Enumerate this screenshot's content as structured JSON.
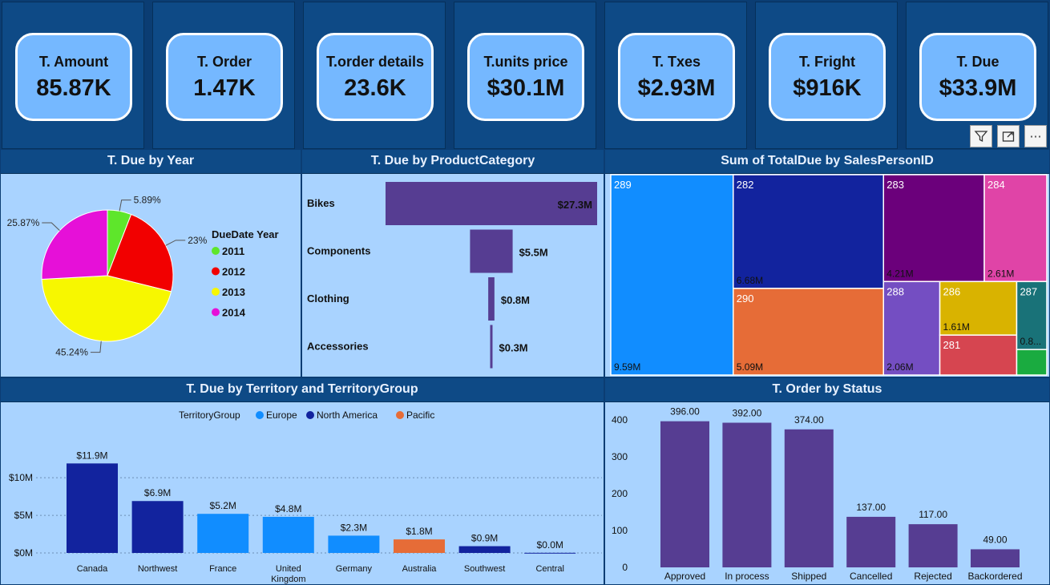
{
  "kpis": [
    {
      "label": "T. Amount",
      "value": "85.87K"
    },
    {
      "label": "T. Order",
      "value": "1.47K"
    },
    {
      "label": "T.order details",
      "value": "23.6K"
    },
    {
      "label": "T.units price",
      "value": "$30.1M"
    },
    {
      "label": "T. Txes",
      "value": "$2.93M"
    },
    {
      "label": "T. Fright",
      "value": "$916K"
    },
    {
      "label": "T. Due",
      "value": "$33.9M"
    }
  ],
  "visual_toolbar": {
    "filter_icon": "filter-icon",
    "focus_icon": "focus-mode-icon",
    "more_icon": "more-options-icon",
    "more_glyph": "⋯"
  },
  "panel_titles": {
    "pie": "T. Due by Year",
    "category": "T. Due by ProductCategory",
    "treemap": "Sum of TotalDue by SalesPersonID",
    "territory": "T. Due by Territory and TerritoryGroup",
    "status": "T. Order by Status"
  },
  "chart_data": [
    {
      "type": "pie",
      "title": "T. Due by Year",
      "legend_title": "DueDate Year",
      "legend_position": "right",
      "categories": [
        "2011",
        "2012",
        "2013",
        "2014"
      ],
      "values": [
        5.89,
        23,
        45.24,
        25.87
      ],
      "data_labels": [
        "5.89%",
        "23%",
        "45.24%",
        "25.87%"
      ],
      "colors": [
        "#5ee62b",
        "#f20000",
        "#f7f700",
        "#e610d8"
      ]
    },
    {
      "type": "bar",
      "orientation": "horizontal-funnel",
      "title": "T. Due by ProductCategory",
      "categories": [
        "Bikes",
        "Components",
        "Clothing",
        "Accessories"
      ],
      "values": [
        27.3,
        5.5,
        0.8,
        0.3
      ],
      "data_labels": [
        "$27.3M",
        "$5.5M",
        "$0.8M",
        "$0.3M"
      ],
      "color": "#563d92"
    },
    {
      "type": "treemap",
      "title": "Sum of TotalDue by SalesPersonID",
      "items": [
        {
          "id": "289",
          "value": 9.59,
          "label": "9.59M",
          "color": "#118dff"
        },
        {
          "id": "282",
          "value": 6.68,
          "label": "6.68M",
          "color": "#12239e"
        },
        {
          "id": "290",
          "value": 5.09,
          "label": "5.09M",
          "color": "#e66c37"
        },
        {
          "id": "283",
          "value": 4.21,
          "label": "4.21M",
          "color": "#6b007b"
        },
        {
          "id": "284",
          "value": 2.61,
          "label": "2.61M",
          "color": "#e044a7"
        },
        {
          "id": "288",
          "value": 2.06,
          "label": "2.06M",
          "color": "#744ec2"
        },
        {
          "id": "286",
          "value": 1.61,
          "label": "1.61M",
          "color": "#d9b300"
        },
        {
          "id": "281",
          "value": 1.2,
          "label": "",
          "color": "#d64550"
        },
        {
          "id": "287",
          "value": 0.8,
          "label": "0.8...",
          "color": "#197278"
        },
        {
          "id": "",
          "value": 0.3,
          "label": "",
          "color": "#1aab40"
        }
      ]
    },
    {
      "type": "bar",
      "title": "T. Due by Territory and TerritoryGroup",
      "legend_title": "TerritoryGroup",
      "legend_position": "top",
      "legend": [
        {
          "name": "Europe",
          "color": "#118dff"
        },
        {
          "name": "North America",
          "color": "#12239e"
        },
        {
          "name": "Pacific",
          "color": "#e66c37"
        }
      ],
      "categories": [
        "Canada",
        "Northwest",
        "France",
        "United Kingdom",
        "Germany",
        "Australia",
        "Southwest",
        "Central"
      ],
      "category_lines": [
        [
          "Canada"
        ],
        [
          "Northwest"
        ],
        [
          "France"
        ],
        [
          "United",
          "Kingdom"
        ],
        [
          "Germany"
        ],
        [
          "Australia"
        ],
        [
          "Southwest"
        ],
        [
          "Central"
        ]
      ],
      "values": [
        11.9,
        6.9,
        5.2,
        4.8,
        2.3,
        1.8,
        0.9,
        0.02
      ],
      "data_labels": [
        "$11.9M",
        "$6.9M",
        "$5.2M",
        "$4.8M",
        "$2.3M",
        "$1.8M",
        "$0.9M",
        "$0.0M"
      ],
      "groups": [
        "North America",
        "North America",
        "Europe",
        "Europe",
        "Europe",
        "Pacific",
        "North America",
        "North America"
      ],
      "yticks": [
        0,
        5,
        10
      ],
      "ytick_labels": [
        "$0M",
        "$5M",
        "$10M"
      ],
      "ylim": [
        0,
        13
      ],
      "grid": true
    },
    {
      "type": "bar",
      "title": "T. Order by Status",
      "categories": [
        "Approved",
        "In process",
        "Shipped",
        "Cancelled",
        "Rejected",
        "Backordered"
      ],
      "values": [
        396,
        392,
        374,
        137,
        117,
        49
      ],
      "data_labels": [
        "396.00",
        "392.00",
        "374.00",
        "137.00",
        "117.00",
        "49.00"
      ],
      "yticks": [
        0,
        100,
        200,
        300,
        400
      ],
      "ytick_labels": [
        "0",
        "100",
        "200",
        "300",
        "400"
      ],
      "ylim": [
        0,
        430
      ],
      "grid": false,
      "color": "#563d92"
    }
  ]
}
